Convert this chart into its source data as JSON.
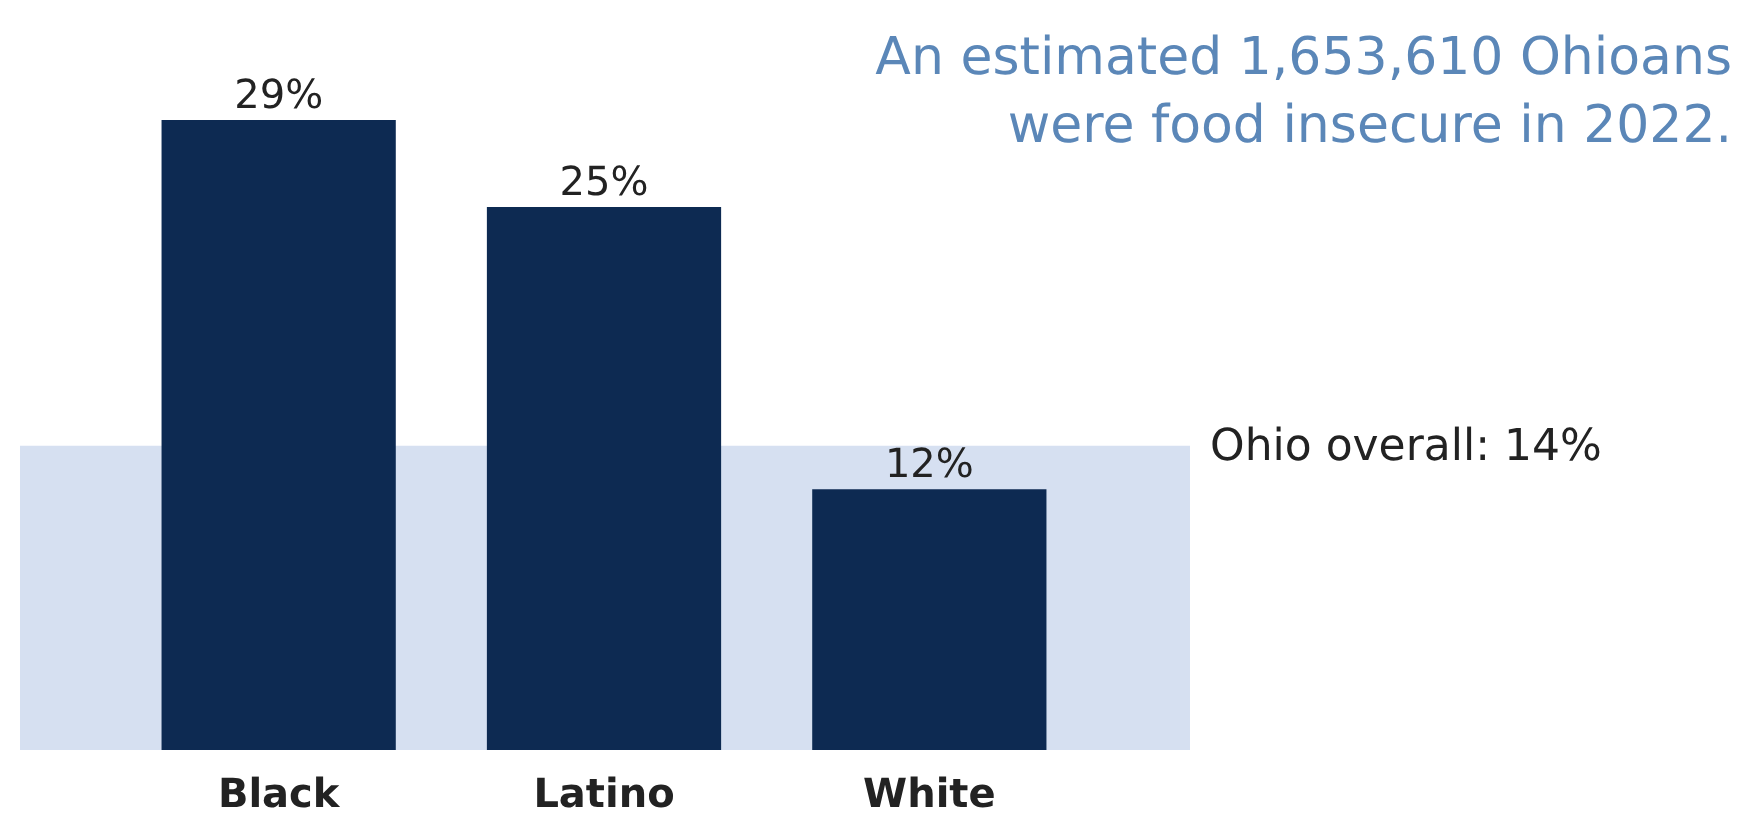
{
  "chart_data": {
    "type": "bar",
    "title": "An estimated 1,653,610 Ohioans\nwere food insecure in 2022.",
    "categories": [
      "Black",
      "Latino",
      "White"
    ],
    "values": [
      29,
      25,
      12
    ],
    "color": "#0d2a52",
    "data_labels": true,
    "value_labels": [
      "29%",
      "25%",
      "12%"
    ],
    "bands": [
      {
        "axis": "y",
        "from": 0,
        "to": 14,
        "label": "Ohio overall: 14%",
        "color": "#d6e0f1"
      }
    ]
  }
}
